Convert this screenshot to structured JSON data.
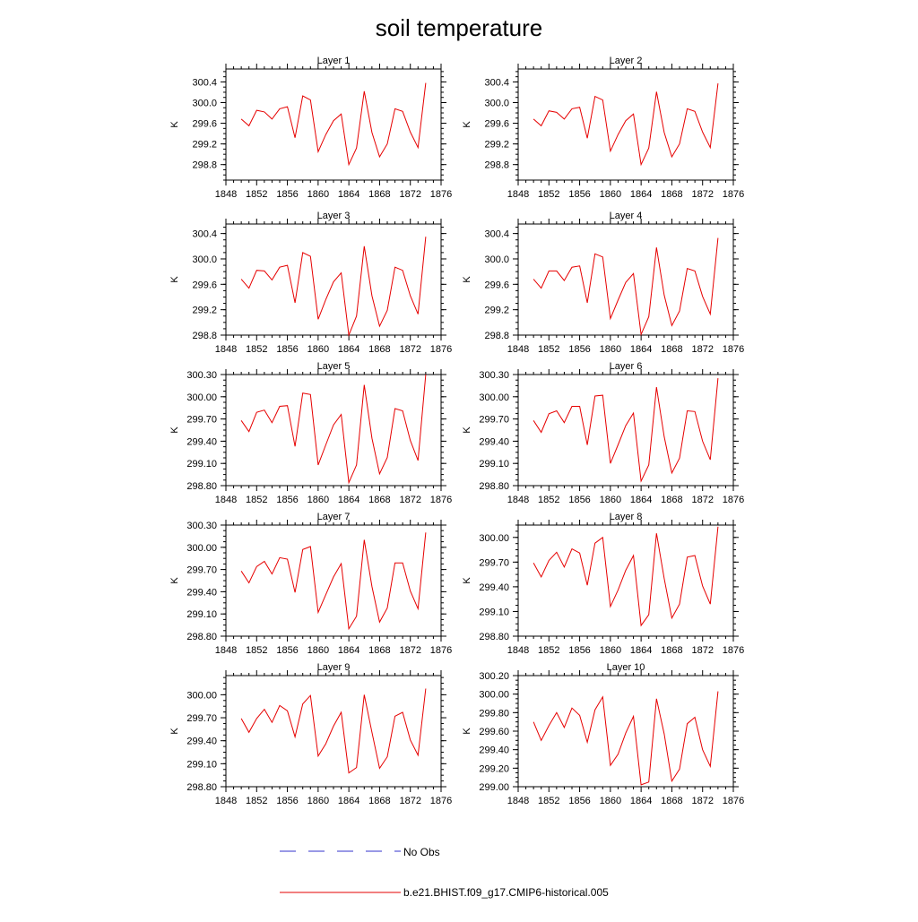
{
  "title": "soil temperature",
  "legend": {
    "obs_label": "No Obs",
    "obs_color": "#3333cc",
    "model_label": "b.e21.BHIST.f09_g17.CMIP6-historical.005",
    "model_color": "#e60000"
  },
  "chart_data": {
    "type": "line",
    "series_name": "b.e21.BHIST.f09_g17.CMIP6-historical.005",
    "ylabel": "K",
    "x": [
      1850,
      1851,
      1852,
      1853,
      1854,
      1855,
      1856,
      1857,
      1858,
      1859,
      1860,
      1861,
      1862,
      1863,
      1864,
      1865,
      1866,
      1867,
      1868,
      1869,
      1870,
      1871,
      1872,
      1873,
      1874
    ],
    "xlim": [
      1848,
      1876
    ],
    "xticks": [
      1848,
      1852,
      1856,
      1860,
      1864,
      1868,
      1872,
      1876
    ],
    "panels": [
      {
        "title": "Layer 1",
        "ylim": [
          298.5,
          300.65
        ],
        "yticks": [
          298.8,
          299.2,
          299.6,
          300.0,
          300.4
        ],
        "ytick_labels": [
          "298.8",
          "299.2",
          "299.6",
          "300.0",
          "300.4"
        ],
        "values": [
          299.68,
          299.55,
          299.85,
          299.82,
          299.68,
          299.88,
          299.92,
          299.32,
          300.13,
          300.05,
          299.05,
          299.38,
          299.65,
          299.78,
          298.8,
          299.12,
          300.22,
          299.42,
          298.95,
          299.2,
          299.88,
          299.83,
          299.43,
          299.13,
          300.38
        ]
      },
      {
        "title": "Layer 2",
        "ylim": [
          298.5,
          300.65
        ],
        "yticks": [
          298.8,
          299.2,
          299.6,
          300.0,
          300.4
        ],
        "ytick_labels": [
          "298.8",
          "299.2",
          "299.6",
          "300.0",
          "300.4"
        ],
        "values": [
          299.68,
          299.55,
          299.84,
          299.81,
          299.68,
          299.88,
          299.91,
          299.31,
          300.12,
          300.05,
          299.06,
          299.38,
          299.65,
          299.78,
          298.8,
          299.12,
          300.21,
          299.42,
          298.95,
          299.2,
          299.88,
          299.83,
          299.43,
          299.13,
          300.37
        ]
      },
      {
        "title": "Layer 3",
        "ylim": [
          298.8,
          300.55
        ],
        "yticks": [
          298.8,
          299.2,
          299.6,
          300.0,
          300.4
        ],
        "ytick_labels": [
          "298.8",
          "299.2",
          "299.6",
          "300.0",
          "300.4"
        ],
        "values": [
          299.68,
          299.54,
          299.82,
          299.81,
          299.67,
          299.87,
          299.9,
          299.31,
          300.1,
          300.04,
          299.05,
          299.36,
          299.64,
          299.78,
          298.8,
          299.1,
          300.2,
          299.42,
          298.94,
          299.19,
          299.87,
          299.82,
          299.42,
          299.13,
          300.35
        ]
      },
      {
        "title": "Layer 4",
        "ylim": [
          298.8,
          300.55
        ],
        "yticks": [
          298.8,
          299.2,
          299.6,
          300.0,
          300.4
        ],
        "ytick_labels": [
          "298.8",
          "299.2",
          "299.6",
          "300.0",
          "300.4"
        ],
        "values": [
          299.68,
          299.54,
          299.81,
          299.81,
          299.66,
          299.87,
          299.89,
          299.31,
          300.08,
          300.03,
          299.06,
          299.35,
          299.63,
          299.77,
          298.81,
          299.09,
          300.18,
          299.43,
          298.95,
          299.18,
          299.85,
          299.81,
          299.41,
          299.13,
          300.33
        ]
      },
      {
        "title": "Layer 5",
        "ylim": [
          298.8,
          300.3
        ],
        "yticks": [
          298.8,
          299.1,
          299.4,
          299.7,
          300.0,
          300.3
        ],
        "ytick_labels": [
          "298.80",
          "299.10",
          "299.40",
          "299.70",
          "300.00",
          "300.30"
        ],
        "values": [
          299.68,
          299.53,
          299.79,
          299.82,
          299.65,
          299.87,
          299.88,
          299.33,
          300.05,
          300.03,
          299.08,
          299.35,
          299.62,
          299.76,
          298.84,
          299.08,
          300.16,
          299.44,
          298.96,
          299.18,
          299.84,
          299.81,
          299.41,
          299.14,
          300.3
        ]
      },
      {
        "title": "Layer 6",
        "ylim": [
          298.8,
          300.3
        ],
        "yticks": [
          298.8,
          299.1,
          299.4,
          299.7,
          300.0,
          300.3
        ],
        "ytick_labels": [
          "298.80",
          "299.10",
          "299.40",
          "299.70",
          "300.00",
          "300.30"
        ],
        "values": [
          299.68,
          299.52,
          299.77,
          299.81,
          299.65,
          299.87,
          299.87,
          299.35,
          300.01,
          300.02,
          299.1,
          299.35,
          299.61,
          299.78,
          298.86,
          299.08,
          300.13,
          299.46,
          298.97,
          299.17,
          299.81,
          299.8,
          299.4,
          299.15,
          300.25
        ]
      },
      {
        "title": "Layer 7",
        "ylim": [
          298.8,
          300.3
        ],
        "yticks": [
          298.8,
          299.1,
          299.4,
          299.7,
          300.0,
          300.3
        ],
        "ytick_labels": [
          "298.80",
          "299.10",
          "299.40",
          "299.70",
          "300.00",
          "300.30"
        ],
        "values": [
          299.68,
          299.52,
          299.74,
          299.81,
          299.64,
          299.86,
          299.84,
          299.39,
          299.97,
          300.01,
          299.12,
          299.36,
          299.6,
          299.78,
          298.9,
          299.07,
          300.1,
          299.47,
          298.99,
          299.18,
          299.79,
          299.79,
          299.41,
          299.17,
          300.2
        ]
      },
      {
        "title": "Layer 8",
        "ylim": [
          298.8,
          300.15
        ],
        "yticks": [
          298.8,
          299.1,
          299.4,
          299.7,
          300.0
        ],
        "ytick_labels": [
          "298.80",
          "299.10",
          "299.40",
          "299.70",
          "300.00"
        ],
        "values": [
          299.69,
          299.52,
          299.72,
          299.82,
          299.64,
          299.86,
          299.81,
          299.42,
          299.93,
          300.0,
          299.16,
          299.36,
          299.6,
          299.78,
          298.93,
          299.06,
          300.05,
          299.5,
          299.02,
          299.19,
          299.76,
          299.78,
          299.41,
          299.19,
          300.13
        ]
      },
      {
        "title": "Layer 9",
        "ylim": [
          298.8,
          300.25
        ],
        "yticks": [
          298.8,
          299.1,
          299.4,
          299.7,
          300.0
        ],
        "ytick_labels": [
          "298.80",
          "299.10",
          "299.40",
          "299.70",
          "300.00"
        ],
        "values": [
          299.69,
          299.51,
          299.69,
          299.81,
          299.64,
          299.86,
          299.79,
          299.45,
          299.88,
          299.99,
          299.2,
          299.36,
          299.59,
          299.77,
          298.98,
          299.05,
          300.0,
          299.51,
          299.04,
          299.19,
          299.72,
          299.77,
          299.41,
          299.21,
          300.08
        ]
      },
      {
        "title": "Layer 10",
        "ylim": [
          299.0,
          300.2
        ],
        "yticks": [
          299.0,
          299.2,
          299.4,
          299.6,
          299.8,
          300.0,
          300.2
        ],
        "ytick_labels": [
          "299.00",
          "299.20",
          "299.40",
          "299.60",
          "299.80",
          "300.00",
          "300.20"
        ],
        "values": [
          299.7,
          299.5,
          299.66,
          299.8,
          299.64,
          299.85,
          299.77,
          299.48,
          299.83,
          299.97,
          299.23,
          299.35,
          299.58,
          299.76,
          299.02,
          299.05,
          299.95,
          299.57,
          299.06,
          299.19,
          299.68,
          299.75,
          299.4,
          299.22,
          300.03
        ]
      }
    ]
  }
}
